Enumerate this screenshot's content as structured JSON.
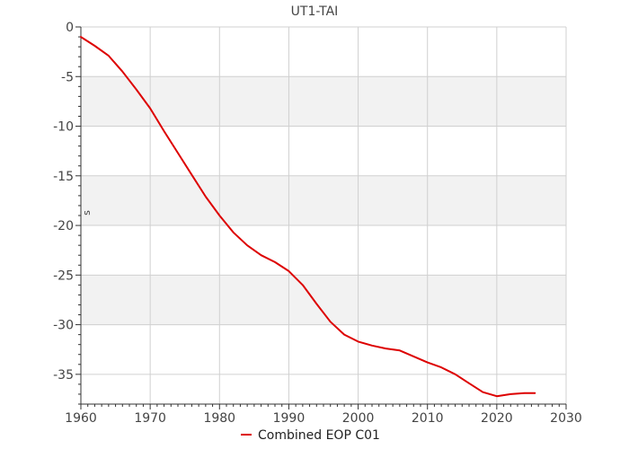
{
  "chart_data": {
    "type": "line",
    "title": "UT1-TAI",
    "xlabel": "",
    "ylabel": "s",
    "xlim": [
      1960,
      2030
    ],
    "ylim": [
      -38,
      0
    ],
    "x_ticks": [
      1960,
      1970,
      1980,
      1990,
      2000,
      2010,
      2020,
      2030
    ],
    "y_ticks": [
      0,
      -5,
      -10,
      -15,
      -20,
      -25,
      -30,
      -35
    ],
    "x_tick_labels": [
      "1960",
      "1970",
      "1980",
      "1990",
      "2000",
      "2010",
      "2020",
      "2030"
    ],
    "y_tick_labels": [
      "0",
      "-5",
      "-10",
      "-15",
      "-20",
      "-25",
      "-30",
      "-35"
    ],
    "grid": true,
    "alternating_bands": true,
    "legend_position": "bottom-center",
    "colors": {
      "series": "#dd0000",
      "band": "#f2f2f2",
      "grid": "#d0d0d0",
      "axis": "#333333"
    },
    "series": [
      {
        "name": "Combined EOP C01",
        "x": [
          1960,
          1962,
          1964,
          1966,
          1968,
          1970,
          1972,
          1974,
          1976,
          1978,
          1980,
          1982,
          1984,
          1986,
          1988,
          1990,
          1992,
          1994,
          1996,
          1998,
          2000,
          2002,
          2004,
          2006,
          2008,
          2010,
          2012,
          2014,
          2016,
          2018,
          2020,
          2022,
          2024,
          2025.5
        ],
        "y": [
          -1.0,
          -1.9,
          -2.9,
          -4.5,
          -6.3,
          -8.2,
          -10.5,
          -12.7,
          -14.9,
          -17.1,
          -19.0,
          -20.7,
          -22.0,
          -23.0,
          -23.7,
          -24.6,
          -26.0,
          -27.9,
          -29.7,
          -31.0,
          -31.7,
          -32.1,
          -32.4,
          -32.6,
          -33.2,
          -33.8,
          -34.3,
          -35.0,
          -35.9,
          -36.8,
          -37.2,
          -37.0,
          -36.9,
          -36.9
        ]
      }
    ]
  }
}
